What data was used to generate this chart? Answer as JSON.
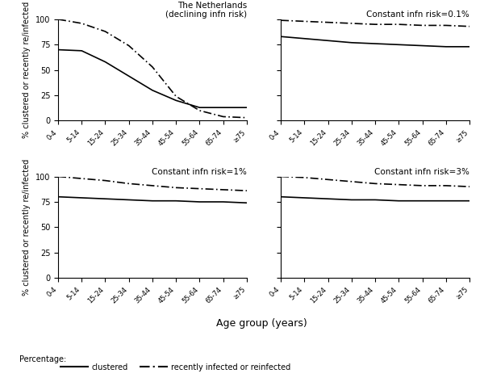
{
  "age_labels": [
    "0-4",
    "5-14",
    "15-24",
    "25-34",
    "35-44",
    "45-54",
    "55-64",
    "65-74",
    "≥75"
  ],
  "panels": [
    {
      "title": "The Netherlands\n(declining infn risk)",
      "title_loc": "right",
      "clustered": [
        70,
        69,
        58,
        44,
        30,
        20,
        13,
        13,
        13
      ],
      "reinfected": [
        100,
        96,
        88,
        74,
        53,
        24,
        10,
        4,
        3
      ]
    },
    {
      "title": "Constant infn risk=0.1%",
      "title_loc": "right",
      "clustered": [
        83,
        81,
        79,
        77,
        76,
        75,
        74,
        73,
        73
      ],
      "reinfected": [
        99,
        98,
        97,
        96,
        95,
        95,
        94,
        94,
        93
      ]
    },
    {
      "title": "Constant infn risk=1%",
      "title_loc": "right",
      "clustered": [
        80,
        79,
        78,
        77,
        76,
        76,
        75,
        75,
        74
      ],
      "reinfected": [
        100,
        98,
        96,
        93,
        91,
        89,
        88,
        87,
        86
      ]
    },
    {
      "title": "Constant infn risk=3%",
      "title_loc": "right",
      "clustered": [
        80,
        79,
        78,
        77,
        77,
        76,
        76,
        76,
        76
      ],
      "reinfected": [
        100,
        99,
        97,
        95,
        93,
        92,
        91,
        91,
        90
      ]
    }
  ],
  "ylabel": "% clustered or recently re/infected",
  "xlabel": "Age group (years)",
  "legend_prefix": "Percentage:",
  "legend_label_solid": "clustered",
  "legend_label_dash": "recently infected or reinfected",
  "yticks": [
    0,
    25,
    50,
    75,
    100
  ],
  "line_color": "black",
  "bg_color": "white",
  "figsize": [
    6.0,
    4.78
  ],
  "dpi": 100
}
